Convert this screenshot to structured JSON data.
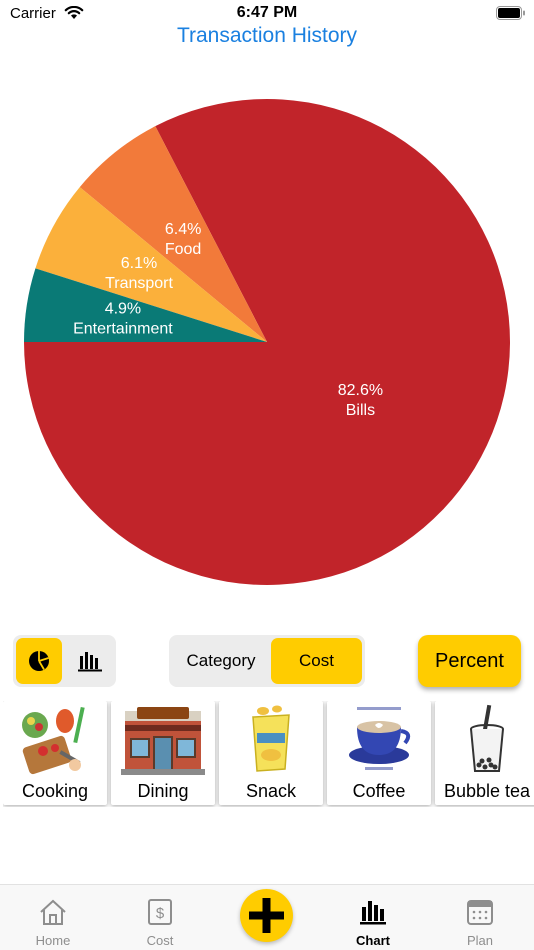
{
  "status_bar": {
    "carrier": "Carrier",
    "time": "6:47 PM"
  },
  "header": {
    "title": "Transaction History"
  },
  "chart_data": {
    "type": "pie",
    "title": "",
    "slices": [
      {
        "label": "Bills",
        "percent_label": "82.6%",
        "value": 82.6,
        "color": "#c1242a"
      },
      {
        "label": "Food",
        "percent_label": "6.4%",
        "value": 6.4,
        "color": "#f27a3a"
      },
      {
        "label": "Transport",
        "percent_label": "6.1%",
        "value": 6.1,
        "color": "#fbb03b"
      },
      {
        "label": "Entertainment",
        "percent_label": "4.9%",
        "value": 4.9,
        "color": "#0a7a76"
      }
    ]
  },
  "controls": {
    "chart_type_options": [
      "pie-chart-icon",
      "bar-chart-icon"
    ],
    "selected_chart_type": "pie",
    "segment": {
      "category_label": "Category",
      "cost_label": "Cost",
      "selected": "Cost"
    },
    "percent_button_label": "Percent"
  },
  "categories": [
    {
      "label": "Cooking",
      "icon": "cooking-icon"
    },
    {
      "label": "Dining",
      "icon": "restaurant-icon"
    },
    {
      "label": "Snack",
      "icon": "chips-icon"
    },
    {
      "label": "Coffee",
      "icon": "latte-icon"
    },
    {
      "label": "Bubble tea",
      "icon": "bubble-tea-icon"
    }
  ],
  "tab_bar": {
    "tabs": [
      {
        "label": "Home",
        "icon": "home-icon"
      },
      {
        "label": "Cost",
        "icon": "dollar-icon"
      },
      {
        "label": "",
        "icon": "plus-icon"
      },
      {
        "label": "Chart",
        "icon": "bar-chart-icon"
      },
      {
        "label": "Plan",
        "icon": "calendar-icon"
      }
    ],
    "active": "Chart"
  },
  "colors": {
    "accent": "#ffcc00",
    "title": "#1a80e0"
  }
}
